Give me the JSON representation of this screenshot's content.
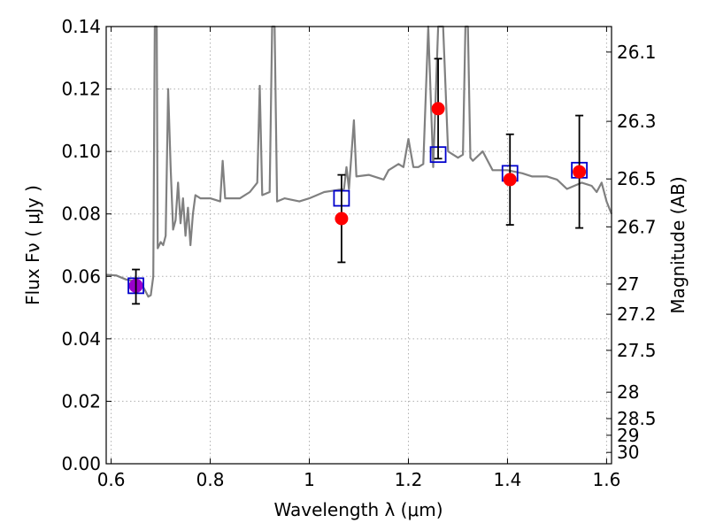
{
  "chart_data": {
    "type": "scatter",
    "title": "",
    "xlabel": "Wavelength  λ (μm)",
    "ylabel": "Flux  Fν  ( μJy )",
    "y2label": "Magnitude (AB)",
    "xlim": [
      0.59,
      1.61
    ],
    "ylim": [
      0.0,
      0.14
    ],
    "grid": true,
    "x_ticks": [
      0.6,
      0.8,
      1.0,
      1.2,
      1.4,
      1.6
    ],
    "x_tick_labels": [
      "0.6",
      "0.8",
      "1",
      "1.2",
      "1.4",
      "1.6"
    ],
    "y_ticks": [
      0.0,
      0.02,
      0.04,
      0.06,
      0.08,
      0.1,
      0.12,
      0.14
    ],
    "y_tick_labels": [
      "0.00",
      "0.02",
      "0.04",
      "0.06",
      "0.08",
      "0.10",
      "0.12",
      "0.14"
    ],
    "y2_ticks": [
      26.1,
      26.3,
      26.5,
      26.7,
      27,
      27.2,
      27.5,
      28,
      28.5,
      29,
      30
    ],
    "y2_tick_labels": [
      "26.1",
      "26.3",
      "26.5",
      "26.7",
      "27",
      "27.2",
      "27.5",
      "28",
      "28.5",
      "29",
      "30"
    ],
    "colors": {
      "spectrum": "#808080",
      "observed": "#ff0000",
      "model_box": "#0000cc",
      "purple_point": "#9900cc",
      "errorbar": "#000000",
      "grid": "#b0b0b0"
    },
    "series": [
      {
        "type": "line",
        "points": [
          [
            0.59,
            0.0605
          ],
          [
            0.61,
            0.0603
          ],
          [
            0.63,
            0.059
          ],
          [
            0.645,
            0.0585
          ],
          [
            0.66,
            0.058
          ],
          [
            0.665,
            0.0565
          ],
          [
            0.67,
            0.055
          ],
          [
            0.675,
            0.0535
          ],
          [
            0.68,
            0.054
          ],
          [
            0.685,
            0.06
          ],
          [
            0.688,
            0.14
          ],
          [
            0.692,
            0.14
          ],
          [
            0.694,
            0.069
          ],
          [
            0.7,
            0.071
          ],
          [
            0.705,
            0.07
          ],
          [
            0.71,
            0.073
          ],
          [
            0.715,
            0.12
          ],
          [
            0.72,
            0.095
          ],
          [
            0.725,
            0.075
          ],
          [
            0.73,
            0.078
          ],
          [
            0.735,
            0.09
          ],
          [
            0.74,
            0.077
          ],
          [
            0.745,
            0.085
          ],
          [
            0.75,
            0.073
          ],
          [
            0.755,
            0.082
          ],
          [
            0.76,
            0.07
          ],
          [
            0.765,
            0.08
          ],
          [
            0.77,
            0.086
          ],
          [
            0.78,
            0.085
          ],
          [
            0.8,
            0.085
          ],
          [
            0.82,
            0.084
          ],
          [
            0.825,
            0.097
          ],
          [
            0.83,
            0.085
          ],
          [
            0.84,
            0.085
          ],
          [
            0.86,
            0.085
          ],
          [
            0.88,
            0.087
          ],
          [
            0.895,
            0.09
          ],
          [
            0.9,
            0.121
          ],
          [
            0.905,
            0.086
          ],
          [
            0.92,
            0.087
          ],
          [
            0.925,
            0.14
          ],
          [
            0.93,
            0.14
          ],
          [
            0.935,
            0.084
          ],
          [
            0.95,
            0.085
          ],
          [
            0.98,
            0.084
          ],
          [
            1.0,
            0.085
          ],
          [
            1.03,
            0.087
          ],
          [
            1.05,
            0.0875
          ],
          [
            1.07,
            0.088
          ],
          [
            1.075,
            0.095
          ],
          [
            1.08,
            0.088
          ],
          [
            1.09,
            0.11
          ],
          [
            1.095,
            0.092
          ],
          [
            1.12,
            0.0925
          ],
          [
            1.15,
            0.091
          ],
          [
            1.16,
            0.094
          ],
          [
            1.18,
            0.096
          ],
          [
            1.19,
            0.095
          ],
          [
            1.2,
            0.104
          ],
          [
            1.21,
            0.095
          ],
          [
            1.22,
            0.095
          ],
          [
            1.23,
            0.096
          ],
          [
            1.24,
            0.14
          ],
          [
            1.25,
            0.095
          ],
          [
            1.26,
            0.14
          ],
          [
            1.27,
            0.14
          ],
          [
            1.28,
            0.1
          ],
          [
            1.3,
            0.098
          ],
          [
            1.31,
            0.099
          ],
          [
            1.315,
            0.14
          ],
          [
            1.32,
            0.14
          ],
          [
            1.325,
            0.098
          ],
          [
            1.33,
            0.097
          ],
          [
            1.35,
            0.1
          ],
          [
            1.37,
            0.094
          ],
          [
            1.4,
            0.094
          ],
          [
            1.43,
            0.093
          ],
          [
            1.45,
            0.092
          ],
          [
            1.48,
            0.092
          ],
          [
            1.5,
            0.091
          ],
          [
            1.52,
            0.088
          ],
          [
            1.55,
            0.09
          ],
          [
            1.57,
            0.089
          ],
          [
            1.58,
            0.087
          ],
          [
            1.59,
            0.09
          ],
          [
            1.6,
            0.084
          ],
          [
            1.61,
            0.08
          ]
        ]
      },
      {
        "type": "scatter_errorbar",
        "points": [
          {
            "x": 0.65,
            "y": 0.0567,
            "yerr": 0.0055
          },
          {
            "x": 1.065,
            "y": 0.0785,
            "yerr": 0.014
          },
          {
            "x": 1.26,
            "y": 0.1137,
            "yerr": 0.016
          },
          {
            "x": 1.405,
            "y": 0.091,
            "yerr": 0.0145
          },
          {
            "x": 1.545,
            "y": 0.0935,
            "yerr": 0.018
          }
        ]
      },
      {
        "type": "boxes",
        "points": [
          {
            "x": 0.65,
            "y": 0.057
          },
          {
            "x": 1.065,
            "y": 0.085
          },
          {
            "x": 1.26,
            "y": 0.099
          },
          {
            "x": 1.405,
            "y": 0.093
          },
          {
            "x": 1.545,
            "y": 0.094
          }
        ]
      }
    ]
  }
}
